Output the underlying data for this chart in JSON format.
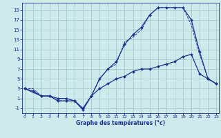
{
  "xlabel": "Graphe des températures (°c)",
  "background_color": "#ceeaea",
  "grid_color": "#aacece",
  "line_color": "#1a2e9e",
  "x_ticks": [
    0,
    1,
    2,
    3,
    4,
    5,
    6,
    7,
    8,
    9,
    10,
    11,
    12,
    13,
    14,
    15,
    16,
    17,
    18,
    19,
    20,
    21,
    22,
    23
  ],
  "y_ticks": [
    -1,
    1,
    3,
    5,
    7,
    9,
    11,
    13,
    15,
    17,
    19
  ],
  "xlim": [
    -0.3,
    23.3
  ],
  "ylim": [
    -2.0,
    20.5
  ],
  "line1_x": [
    0,
    1,
    2,
    3,
    4,
    5,
    6,
    7,
    8,
    9,
    10,
    11,
    12,
    13,
    14,
    15,
    16,
    17,
    18,
    19,
    20,
    21,
    22,
    23
  ],
  "line1_y": [
    3,
    2.5,
    1.5,
    1.5,
    0.5,
    0.5,
    0.5,
    -1.0,
    1.5,
    5.0,
    7.0,
    8.5,
    12.0,
    14.0,
    15.5,
    18.0,
    19.5,
    19.5,
    19.5,
    19.5,
    17.0,
    10.5,
    5.0,
    4.0
  ],
  "line2_x": [
    0,
    2,
    3,
    4,
    5,
    6,
    7,
    8,
    9,
    10,
    11,
    12,
    13,
    14,
    15,
    16,
    17,
    18,
    19,
    20,
    21,
    22,
    23
  ],
  "line2_y": [
    3,
    1.5,
    1.5,
    1.0,
    1.0,
    0.5,
    -1.3,
    1.5,
    3.0,
    4.0,
    5.0,
    5.5,
    6.5,
    7.0,
    7.0,
    7.5,
    8.0,
    8.5,
    9.5,
    10.0,
    6.0,
    5.0,
    4.0
  ],
  "line3_x": [
    0,
    1,
    2,
    3,
    4,
    5,
    6,
    7,
    8,
    9,
    10,
    11,
    12,
    13,
    14,
    15,
    16,
    17,
    18,
    19,
    20,
    21,
    22,
    23
  ],
  "line3_y": [
    3,
    3,
    1.5,
    1.5,
    0.5,
    0.5,
    0.5,
    -1.3,
    1.5,
    5.0,
    7.0,
    8.0,
    12.5,
    13.5,
    15.0,
    18.0,
    19.5,
    19.5,
    19.5,
    19.5,
    16.0,
    10.0,
    5.0,
    4.0
  ]
}
